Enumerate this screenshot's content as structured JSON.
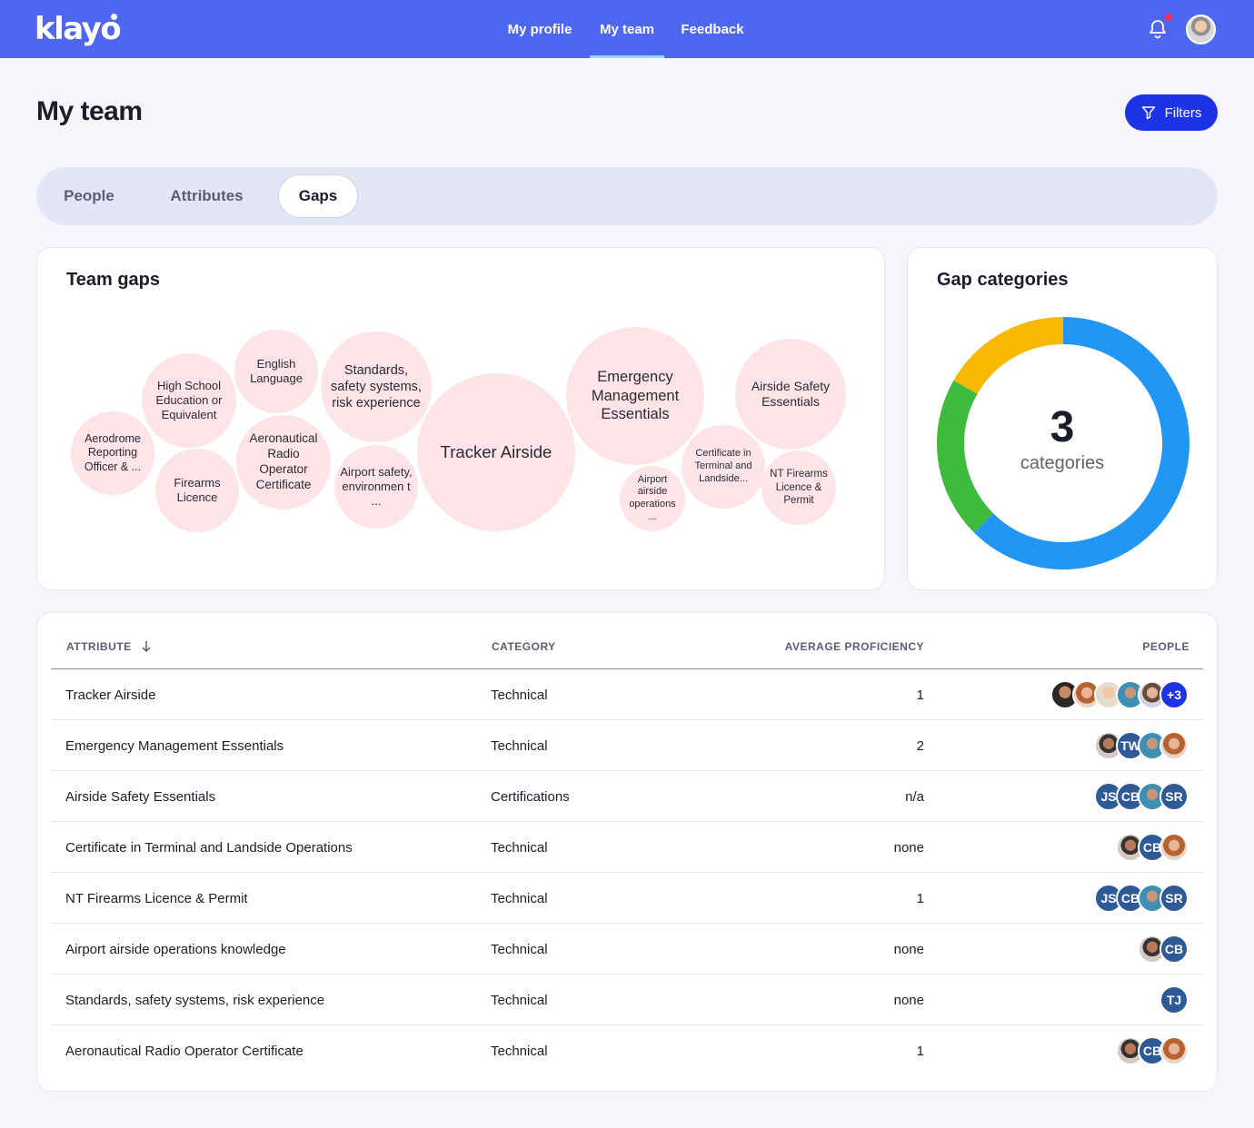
{
  "header": {
    "logo": "klayo",
    "nav": [
      {
        "label": "My profile",
        "active": false
      },
      {
        "label": "My team",
        "active": true
      },
      {
        "label": "Feedback",
        "active": false
      }
    ],
    "accent": "#4f66f0"
  },
  "page": {
    "title": "My team",
    "filters_label": "Filters"
  },
  "tabs": [
    {
      "label": "People",
      "active": false
    },
    {
      "label": "Attributes",
      "active": false
    },
    {
      "label": "Gaps",
      "active": true
    }
  ],
  "team_gaps": {
    "title": "Team gaps",
    "bubbles": [
      "Aerodrome Reporting Officer & ...",
      "High School Education or Equivalent",
      "English Language",
      "Firearms Licence",
      "Aeronautical Radio Operator Certificate",
      "Standards, safety systems, risk experience",
      "Airport safety, environmen t ...",
      "Tracker Airside",
      "Emergency Management Essentials",
      "Airport airside operations ...",
      "Certificate in Terminal and Landside...",
      "Airside Safety Essentials",
      "NT Firearms Licence & Permit"
    ]
  },
  "gap_categories": {
    "title": "Gap categories",
    "count": "3",
    "count_label": "categories",
    "chart_data": {
      "type": "pie",
      "segments": [
        {
          "value": 62.5,
          "color": "#2196f3"
        },
        {
          "value": 20.8,
          "color": "#3dbb3d"
        },
        {
          "value": 16.7,
          "color": "#f6b900"
        }
      ]
    }
  },
  "table": {
    "columns": {
      "attribute": "ATTRIBUTE",
      "category": "CATEGORY",
      "proficiency": "AVERAGE PROFICIENCY",
      "people": "PEOPLE"
    },
    "rows": [
      {
        "attribute": "Tracker Airside",
        "category": "Technical",
        "proficiency": "1",
        "people": [
          {
            "kind": "photo-a"
          },
          {
            "kind": "photo-b"
          },
          {
            "kind": "photo-c"
          },
          {
            "kind": "photo-d"
          },
          {
            "kind": "photo-e"
          },
          {
            "kind": "more",
            "text": "+3"
          }
        ]
      },
      {
        "attribute": "Emergency Management Essentials",
        "category": "Technical",
        "proficiency": "2",
        "people": [
          {
            "kind": "photo-f"
          },
          {
            "kind": "initials",
            "text": "TW"
          },
          {
            "kind": "photo-d"
          },
          {
            "kind": "photo-b"
          }
        ]
      },
      {
        "attribute": "Airside Safety Essentials",
        "category": "Certifications",
        "proficiency": "n/a",
        "people": [
          {
            "kind": "initials",
            "text": "JS"
          },
          {
            "kind": "initials",
            "text": "CB"
          },
          {
            "kind": "photo-d"
          },
          {
            "kind": "initials",
            "text": "SR"
          }
        ]
      },
      {
        "attribute": "Certificate in Terminal and Landside Operations",
        "category": "Technical",
        "proficiency": "none",
        "people": [
          {
            "kind": "photo-f"
          },
          {
            "kind": "initials",
            "text": "CB"
          },
          {
            "kind": "photo-b"
          }
        ]
      },
      {
        "attribute": "NT Firearms Licence & Permit",
        "category": "Technical",
        "proficiency": "1",
        "people": [
          {
            "kind": "initials",
            "text": "JS"
          },
          {
            "kind": "initials",
            "text": "CB"
          },
          {
            "kind": "photo-d"
          },
          {
            "kind": "initials",
            "text": "SR"
          }
        ]
      },
      {
        "attribute": "Airport airside operations knowledge",
        "category": "Technical",
        "proficiency": "none",
        "people": [
          {
            "kind": "photo-f"
          },
          {
            "kind": "initials",
            "text": "CB"
          }
        ]
      },
      {
        "attribute": "Standards, safety systems, risk experience",
        "category": "Technical",
        "proficiency": "none",
        "people": [
          {
            "kind": "initials",
            "text": "TJ"
          }
        ]
      },
      {
        "attribute": "Aeronautical Radio Operator Certificate",
        "category": "Technical",
        "proficiency": "1",
        "people": [
          {
            "kind": "photo-f"
          },
          {
            "kind": "initials",
            "text": "CB"
          },
          {
            "kind": "photo-b"
          }
        ]
      }
    ]
  }
}
